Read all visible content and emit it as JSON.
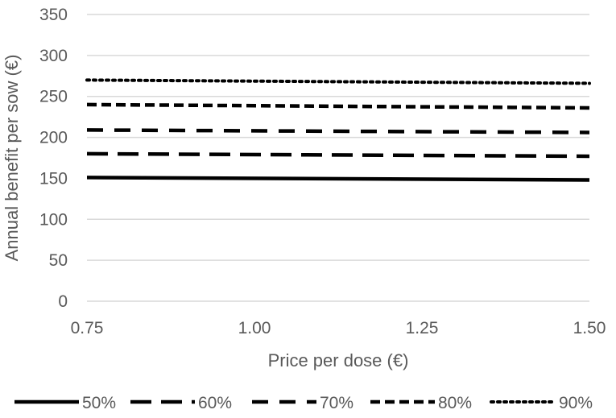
{
  "chart_data": {
    "type": "line",
    "title": "",
    "xlabel": "Price per dose (€)",
    "ylabel": "Annual benefit per sow (€)",
    "x": [
      0.75,
      1.5
    ],
    "x_tick_labels": [
      "0.75",
      "1.00",
      "1.25",
      "1.50"
    ],
    "x_ticks": [
      0.75,
      1.0,
      1.25,
      1.5
    ],
    "xlim": [
      0.75,
      1.5
    ],
    "y_tick_labels": [
      "0",
      "50",
      "100",
      "150",
      "200",
      "250",
      "300",
      "350"
    ],
    "y_ticks": [
      0,
      50,
      100,
      150,
      200,
      250,
      300,
      350
    ],
    "ylim": [
      0,
      350
    ],
    "grid": "horizontal",
    "legend_position": "bottom",
    "series": [
      {
        "name": "50%",
        "values": [
          151,
          148
        ],
        "color": "#000000",
        "dash": "solid"
      },
      {
        "name": "60%",
        "values": [
          180,
          177
        ],
        "color": "#000000",
        "dash": "long-dash"
      },
      {
        "name": "70%",
        "values": [
          209,
          206
        ],
        "color": "#000000",
        "dash": "dash"
      },
      {
        "name": "80%",
        "values": [
          240,
          236
        ],
        "color": "#000000",
        "dash": "short-dash"
      },
      {
        "name": "90%",
        "values": [
          270,
          266
        ],
        "color": "#000000",
        "dash": "dot"
      }
    ]
  }
}
